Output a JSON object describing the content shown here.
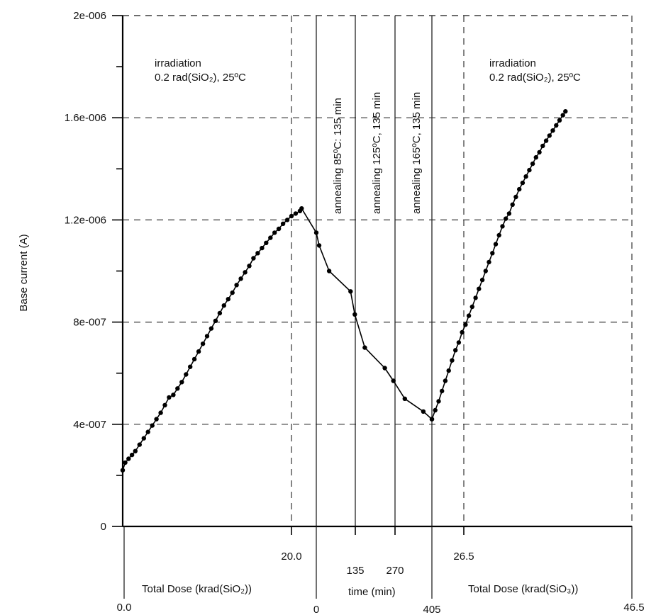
{
  "chart_data": {
    "type": "line",
    "ylabel": "Base current (A)",
    "ylim": [
      0,
      2e-06
    ],
    "yticks": [
      "0",
      "4e-007",
      "8e-007",
      "1.2e-006",
      "1.6e-006",
      "2e-006"
    ],
    "grid": true,
    "segments": [
      {
        "xlabel": "Total Dose (krad(SiO₂))",
        "tick_labels": [
          "0.0",
          "20.0"
        ],
        "annotation": [
          "irradiation",
          "0.2 rad(SiO₂), 25ºC"
        ],
        "points": [
          [
            0.0,
            2.2e-07
          ],
          [
            0.3,
            2.5e-07
          ],
          [
            0.7,
            2.65e-07
          ],
          [
            1.1,
            2.8e-07
          ],
          [
            1.5,
            2.95e-07
          ],
          [
            2.0,
            3.2e-07
          ],
          [
            2.5,
            3.45e-07
          ],
          [
            3.0,
            3.7e-07
          ],
          [
            3.5,
            3.95e-07
          ],
          [
            4.0,
            4.2e-07
          ],
          [
            4.5,
            4.45e-07
          ],
          [
            5.0,
            4.75e-07
          ],
          [
            5.5,
            5.05e-07
          ],
          [
            6.0,
            5.15e-07
          ],
          [
            6.5,
            5.4e-07
          ],
          [
            7.0,
            5.65e-07
          ],
          [
            7.5,
            5.95e-07
          ],
          [
            8.0,
            6.25e-07
          ],
          [
            8.5,
            6.55e-07
          ],
          [
            9.0,
            6.85e-07
          ],
          [
            9.5,
            7.15e-07
          ],
          [
            10.0,
            7.45e-07
          ],
          [
            10.5,
            7.75e-07
          ],
          [
            11.0,
            8.05e-07
          ],
          [
            11.5,
            8.35e-07
          ],
          [
            12.0,
            8.65e-07
          ],
          [
            12.5,
            8.9e-07
          ],
          [
            13.0,
            9.15e-07
          ],
          [
            13.5,
            9.45e-07
          ],
          [
            14.0,
            9.7e-07
          ],
          [
            14.5,
            9.95e-07
          ],
          [
            15.0,
            1.02e-06
          ],
          [
            15.5,
            1.05e-06
          ],
          [
            16.0,
            1.07e-06
          ],
          [
            16.5,
            1.09e-06
          ],
          [
            17.0,
            1.11e-06
          ],
          [
            17.5,
            1.13e-06
          ],
          [
            18.0,
            1.15e-06
          ],
          [
            18.5,
            1.165e-06
          ],
          [
            19.0,
            1.185e-06
          ],
          [
            19.5,
            1.2e-06
          ],
          [
            20.0,
            1.215e-06
          ],
          [
            20.5,
            1.225e-06
          ],
          [
            21.0,
            1.235e-06
          ],
          [
            21.2,
            1.245e-06
          ]
        ]
      },
      {
        "xlabel": "time (min)",
        "tick_labels": [
          "0",
          "135",
          "270",
          "405"
        ],
        "annotations": [
          "annealing 85ºC: 135 min",
          "annealing 125ºC, 135 min",
          "annealing 165ºC, 135 min"
        ],
        "points": [
          [
            0,
            1.15e-06
          ],
          [
            10,
            1.1e-06
          ],
          [
            45,
            1e-06
          ],
          [
            120,
            9.2e-07
          ],
          [
            135,
            8.3e-07
          ],
          [
            170,
            7e-07
          ],
          [
            240,
            6.2e-07
          ],
          [
            270,
            5.7e-07
          ],
          [
            310,
            5e-07
          ],
          [
            375,
            4.5e-07
          ],
          [
            405,
            4.2e-07
          ]
        ]
      },
      {
        "xlabel": "Total Dose (krad(SiO₃))",
        "tick_labels": [
          "26.5",
          "46.5"
        ],
        "annotation": [
          "irradiation",
          "0.2 rad(SiO₂), 25ºC"
        ],
        "points": [
          [
            22.7,
            4.2e-07
          ],
          [
            23.1,
            4.55e-07
          ],
          [
            23.5,
            4.9e-07
          ],
          [
            23.9,
            5.3e-07
          ],
          [
            24.3,
            5.7e-07
          ],
          [
            24.7,
            6.1e-07
          ],
          [
            25.1,
            6.5e-07
          ],
          [
            25.5,
            6.9e-07
          ],
          [
            25.9,
            7.2e-07
          ],
          [
            26.3,
            7.6e-07
          ],
          [
            26.7,
            7.9e-07
          ],
          [
            27.1,
            8.25e-07
          ],
          [
            27.5,
            8.6e-07
          ],
          [
            27.9,
            8.95e-07
          ],
          [
            28.3,
            9.3e-07
          ],
          [
            28.7,
            9.65e-07
          ],
          [
            29.1,
            1e-06
          ],
          [
            29.5,
            1.035e-06
          ],
          [
            29.9,
            1.07e-06
          ],
          [
            30.3,
            1.105e-06
          ],
          [
            30.7,
            1.14e-06
          ],
          [
            31.1,
            1.175e-06
          ],
          [
            31.5,
            1.205e-06
          ],
          [
            31.9,
            1.225e-06
          ],
          [
            32.3,
            1.26e-06
          ],
          [
            32.7,
            1.29e-06
          ],
          [
            33.1,
            1.32e-06
          ],
          [
            33.5,
            1.345e-06
          ],
          [
            33.9,
            1.37e-06
          ],
          [
            34.3,
            1.395e-06
          ],
          [
            34.7,
            1.42e-06
          ],
          [
            35.1,
            1.445e-06
          ],
          [
            35.5,
            1.465e-06
          ],
          [
            35.9,
            1.49e-06
          ],
          [
            36.3,
            1.51e-06
          ],
          [
            36.7,
            1.53e-06
          ],
          [
            37.1,
            1.55e-06
          ],
          [
            37.5,
            1.57e-06
          ],
          [
            37.9,
            1.59e-06
          ],
          [
            38.3,
            1.61e-06
          ],
          [
            38.6,
            1.625e-06
          ]
        ]
      }
    ]
  }
}
